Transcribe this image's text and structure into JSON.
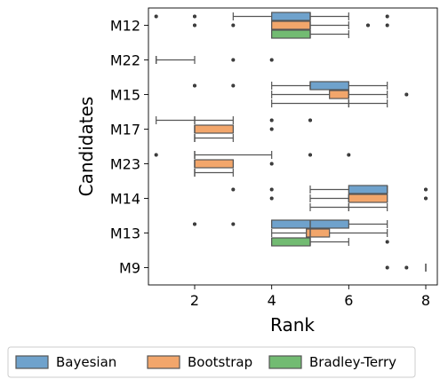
{
  "chart_data": {
    "type": "boxplot",
    "orientation": "horizontal",
    "xlabel": "Rank",
    "ylabel": "Candidates",
    "xlim": [
      0.8,
      8.3
    ],
    "xticks": [
      2,
      4,
      6,
      8
    ],
    "grid": false,
    "legend": {
      "position": "bottom",
      "entries": [
        "Bayesian",
        "Bootstrap",
        "Bradley-Terry"
      ]
    },
    "series_colors": {
      "Bayesian": "#6fa2cc",
      "Bootstrap": "#f2a66b",
      "Bradley-Terry": "#72bb72"
    },
    "categories": [
      "M12",
      "M22",
      "M15",
      "M17",
      "M23",
      "M14",
      "M13",
      "M9"
    ],
    "groups": [
      {
        "candidate": "M12",
        "boxes": [
          {
            "series": "Bayesian",
            "whislo": 3,
            "q1": 4,
            "med": 5,
            "q3": 5,
            "whishi": 6,
            "fliers": [
              1,
              2,
              7
            ]
          },
          {
            "series": "Bootstrap",
            "whislo": 4,
            "q1": 4,
            "med": 5,
            "q3": 5,
            "whishi": 6,
            "fliers": [
              2,
              3,
              6.5,
              7
            ]
          },
          {
            "series": "Bradley-Terry",
            "whislo": 4,
            "q1": 4,
            "med": 5,
            "q3": 5,
            "whishi": 6,
            "fliers": []
          }
        ]
      },
      {
        "candidate": "M22",
        "boxes": [
          {
            "series": "Bayesian",
            "whislo": 1,
            "q1": 1,
            "med": 1,
            "q3": 1,
            "whishi": 2,
            "fliers": [
              3,
              4
            ]
          }
        ]
      },
      {
        "candidate": "M15",
        "boxes": [
          {
            "series": "Bayesian",
            "whislo": 4,
            "q1": 5,
            "med": 5,
            "q3": 6,
            "whishi": 7,
            "fliers": [
              2,
              3
            ]
          },
          {
            "series": "Bootstrap",
            "whislo": 4,
            "q1": 5.5,
            "med": 6,
            "q3": 6,
            "whishi": 7,
            "fliers": [
              7.5
            ]
          },
          {
            "series": "Bradley-Terry",
            "whislo": 4,
            "q1": 6,
            "med": 6,
            "q3": 6,
            "whishi": 7,
            "fliers": []
          }
        ]
      },
      {
        "candidate": "M17",
        "boxes": [
          {
            "series": "Bayesian",
            "whislo": 1,
            "q1": 2,
            "med": 2,
            "q3": 2,
            "whishi": 3,
            "fliers": [
              4,
              5
            ]
          },
          {
            "series": "Bootstrap",
            "whislo": 2,
            "q1": 2,
            "med": 2,
            "q3": 3,
            "whishi": 3,
            "fliers": [
              4
            ]
          },
          {
            "series": "Bradley-Terry",
            "whislo": 2,
            "q1": 2,
            "med": 2,
            "q3": 2,
            "whishi": 3,
            "fliers": []
          }
        ]
      },
      {
        "candidate": "M23",
        "boxes": [
          {
            "series": "Bayesian",
            "whislo": 2,
            "q1": 2,
            "med": 2,
            "q3": 2,
            "whishi": 4,
            "fliers": [
              1,
              5,
              6
            ]
          },
          {
            "series": "Bootstrap",
            "whislo": 2,
            "q1": 2,
            "med": 2,
            "q3": 3,
            "whishi": 3,
            "fliers": [
              4
            ]
          },
          {
            "series": "Bradley-Terry",
            "whislo": 2,
            "q1": 2,
            "med": 2,
            "q3": 2,
            "whishi": 3,
            "fliers": []
          }
        ]
      },
      {
        "candidate": "M14",
        "boxes": [
          {
            "series": "Bayesian",
            "whislo": 5,
            "q1": 6,
            "med": 7,
            "q3": 7,
            "whishi": 7,
            "fliers": [
              3,
              4,
              8
            ]
          },
          {
            "series": "Bootstrap",
            "whislo": 5,
            "q1": 6,
            "med": 6,
            "q3": 7,
            "whishi": 7,
            "fliers": [
              4,
              8
            ]
          },
          {
            "series": "Bradley-Terry",
            "whislo": 5,
            "q1": 6,
            "med": 6,
            "q3": 6,
            "whishi": 7,
            "fliers": []
          }
        ]
      },
      {
        "candidate": "M13",
        "boxes": [
          {
            "series": "Bayesian",
            "whislo": 4,
            "q1": 4,
            "med": 5,
            "q3": 6,
            "whishi": 7,
            "fliers": [
              2,
              3
            ]
          },
          {
            "series": "Bootstrap",
            "whislo": 4,
            "q1": 4.9,
            "med": 5,
            "q3": 5.5,
            "whishi": 7,
            "fliers": []
          },
          {
            "series": "Bradley-Terry",
            "whislo": 4,
            "q1": 4,
            "med": 5,
            "q3": 5,
            "whishi": 6,
            "fliers": [
              7
            ]
          }
        ]
      },
      {
        "candidate": "M9",
        "boxes": [
          {
            "series": "Bayesian",
            "whislo": 8,
            "q1": 8,
            "med": 8,
            "q3": 8,
            "whishi": 8,
            "fliers": [
              7,
              7.5
            ]
          }
        ]
      }
    ]
  }
}
